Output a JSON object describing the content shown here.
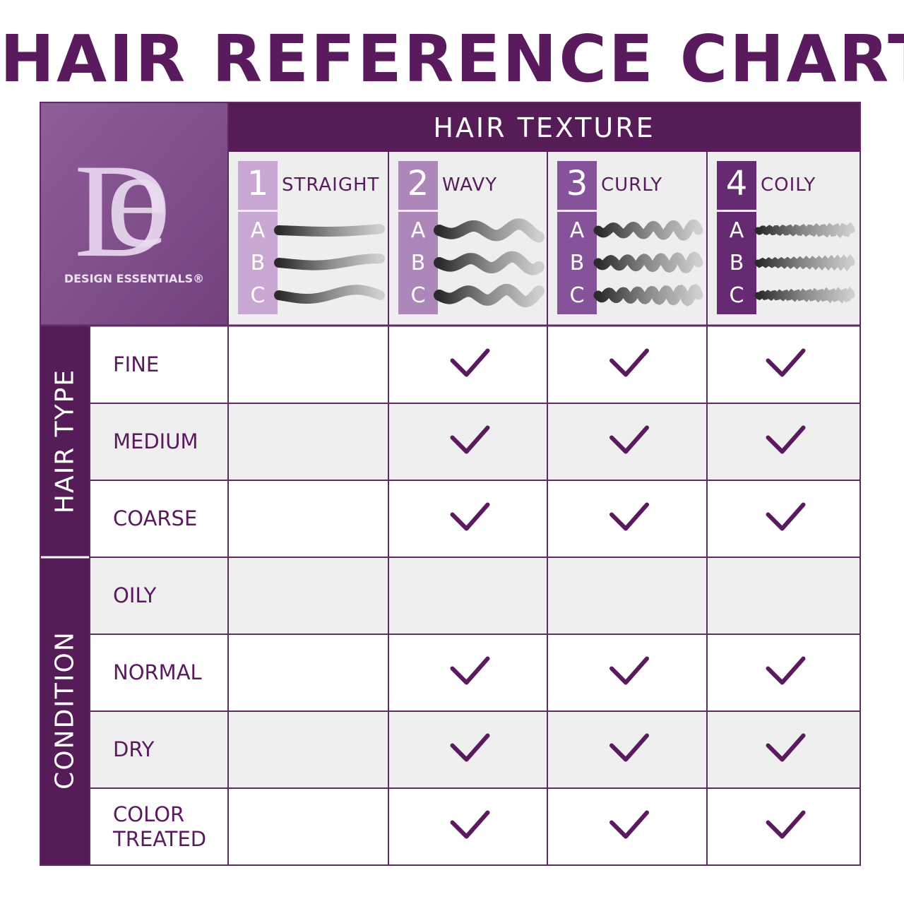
{
  "title": "HAIR REFERENCE CHART",
  "header": "HAIR TEXTURE",
  "logo": {
    "monogram": [
      "D",
      "e"
    ],
    "name": "DESIGN ESSENTIALS®"
  },
  "textures": [
    {
      "number": "1",
      "name": "STRAIGHT",
      "subtypes": [
        "A",
        "B",
        "C"
      ],
      "color": "#c8a8d3"
    },
    {
      "number": "2",
      "name": "WAVY",
      "subtypes": [
        "A",
        "B",
        "C"
      ],
      "color": "#ad86ba"
    },
    {
      "number": "3",
      "name": "CURLY",
      "subtypes": [
        "A",
        "B",
        "C"
      ],
      "color": "#86539a"
    },
    {
      "number": "4",
      "name": "COILY",
      "subtypes": [
        "A",
        "B",
        "C"
      ],
      "color": "#652a72"
    }
  ],
  "groups": [
    {
      "label": "HAIR TYPE",
      "rows": [
        {
          "label": "FINE",
          "checks": [
            false,
            true,
            true,
            true
          ]
        },
        {
          "label": "MEDIUM",
          "checks": [
            false,
            true,
            true,
            true
          ]
        },
        {
          "label": "COARSE",
          "checks": [
            false,
            true,
            true,
            true
          ]
        }
      ]
    },
    {
      "label": "CONDITION",
      "rows": [
        {
          "label": "OILY",
          "checks": [
            false,
            false,
            false,
            false
          ]
        },
        {
          "label": "NORMAL",
          "checks": [
            false,
            true,
            true,
            true
          ]
        },
        {
          "label": "DRY",
          "checks": [
            false,
            true,
            true,
            true
          ]
        },
        {
          "label": "COLOR TREATED",
          "checks": [
            false,
            true,
            true,
            true
          ]
        }
      ]
    }
  ]
}
